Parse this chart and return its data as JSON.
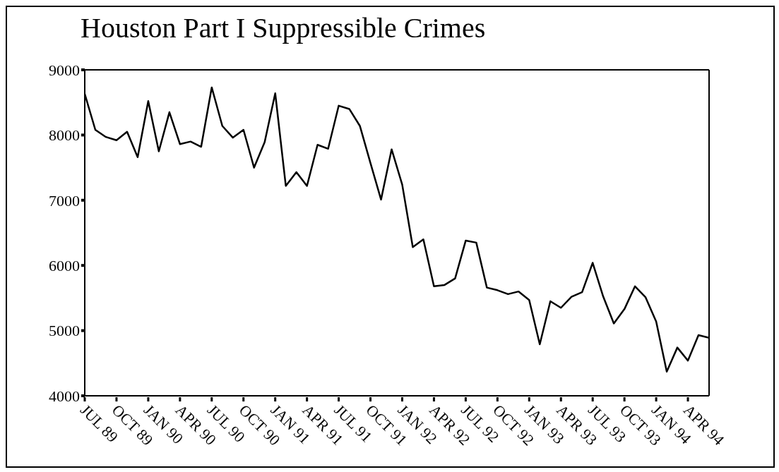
{
  "chart_data": {
    "type": "line",
    "title": "Houston Part I Suppressible Crimes",
    "categories": [
      "JUL 89",
      null,
      null,
      "OCT 89",
      null,
      null,
      "JAN 90",
      null,
      null,
      "APR 90",
      null,
      null,
      "JUL 90",
      null,
      null,
      "OCT 90",
      null,
      null,
      "JAN 91",
      null,
      null,
      "APR 91",
      null,
      null,
      "JUL 91",
      null,
      null,
      "OCT 91",
      null,
      null,
      "JAN 92",
      null,
      null,
      "APR 92",
      null,
      null,
      "JUL 92",
      null,
      null,
      "OCT 92",
      null,
      null,
      "JAN 93",
      null,
      null,
      "APR 93",
      null,
      null,
      "JUL 93",
      null,
      null,
      "OCT 93",
      null,
      null,
      "JAN 94",
      null,
      null,
      "APR 94",
      null,
      null
    ],
    "values": [
      8630,
      8080,
      7970,
      7920,
      8050,
      7660,
      8520,
      7750,
      8350,
      7860,
      7900,
      7820,
      8730,
      8140,
      7960,
      8080,
      7500,
      7890,
      8640,
      7220,
      7430,
      7220,
      7850,
      7790,
      8450,
      8400,
      8140,
      7570,
      7010,
      7780,
      7240,
      6280,
      6400,
      5680,
      5700,
      5800,
      6380,
      6350,
      5660,
      5620,
      5560,
      5600,
      5470,
      4790,
      5450,
      5350,
      5520,
      5590,
      6040,
      5520,
      5110,
      5330,
      5680,
      5510,
      5140,
      4370,
      4740,
      4540,
      4930,
      4890
    ],
    "color": "#000000",
    "ylim": [
      4000,
      9000
    ],
    "yticks": [
      4000,
      5000,
      6000,
      7000,
      8000,
      9000
    ]
  }
}
